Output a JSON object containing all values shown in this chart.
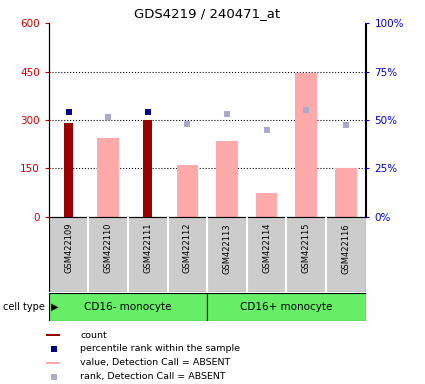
{
  "title": "GDS4219 / 240471_at",
  "samples": [
    "GSM422109",
    "GSM422110",
    "GSM422111",
    "GSM422112",
    "GSM422113",
    "GSM422114",
    "GSM422115",
    "GSM422116"
  ],
  "cell_types": [
    {
      "label": "CD16- monocyte",
      "start": 0,
      "end": 4
    },
    {
      "label": "CD16+ monocyte",
      "start": 4,
      "end": 8
    }
  ],
  "count_values": [
    290,
    null,
    300,
    null,
    null,
    null,
    null,
    null
  ],
  "value_absent": [
    null,
    245,
    null,
    160,
    235,
    75,
    445,
    150
  ],
  "percentile_rank_left": [
    325,
    null,
    325,
    null,
    null,
    null,
    null,
    null
  ],
  "rank_absent_left": [
    null,
    310,
    null,
    288,
    320,
    270,
    330,
    285
  ],
  "left_ylim": [
    0,
    600
  ],
  "left_yticks": [
    0,
    150,
    300,
    450,
    600
  ],
  "right_ylim": [
    0,
    100
  ],
  "right_yticks": [
    0,
    25,
    50,
    75,
    100
  ],
  "right_yticklabels": [
    "0%",
    "25%",
    "50%",
    "75%",
    "100%"
  ],
  "left_tick_color": "#cc0000",
  "right_tick_color": "#0000cc",
  "bar_color_count": "#990000",
  "bar_color_value_absent": "#ffaaaa",
  "dot_color_percentile": "#00008b",
  "dot_color_rank_absent": "#aaaacc",
  "cell_type_bg": "#66ee66",
  "sample_bg": "#cccccc",
  "legend_items": [
    {
      "label": "count",
      "color": "#990000",
      "type": "bar"
    },
    {
      "label": "percentile rank within the sample",
      "color": "#00008b",
      "type": "dot"
    },
    {
      "label": "value, Detection Call = ABSENT",
      "color": "#ffaaaa",
      "type": "bar"
    },
    {
      "label": "rank, Detection Call = ABSENT",
      "color": "#aaaacc",
      "type": "dot"
    }
  ]
}
